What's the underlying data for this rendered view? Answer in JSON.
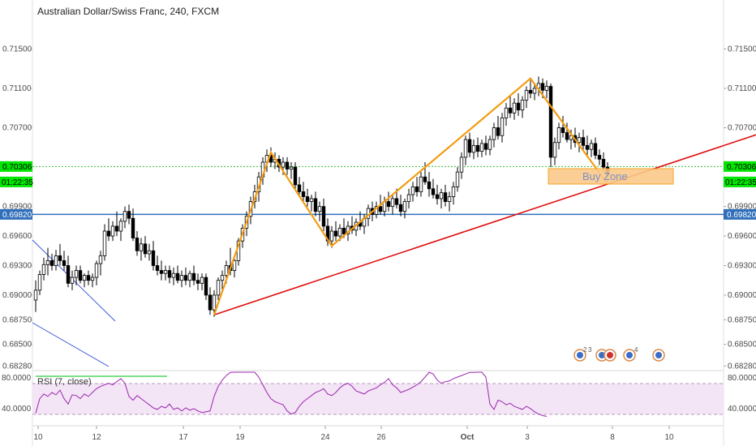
{
  "header": {
    "title": "Australian Dollar/Swiss Franc, 240, FXCM"
  },
  "rsi": {
    "label": "RSI (7, close)",
    "right_ticks": [
      "80.0000",
      "40.0000"
    ],
    "left_ticks": [
      "80.0000",
      "40.0000"
    ]
  },
  "price_tags": {
    "current_left": "0.70306",
    "current_right": "0.70306",
    "countdown_left": "01:22:35",
    "countdown_right": "01:22:35",
    "support_left": "0.69820",
    "support_right": "0.69820"
  },
  "annotation": {
    "buy_zone": "Buy Zone"
  },
  "events": {
    "e1": "2",
    "e2": "3",
    "e3": "4"
  },
  "colors": {
    "up_candle": "#ffffff",
    "down_candle": "#000000",
    "pattern_line": "#f39c12",
    "trend_line": "#e01010",
    "support_line": "#2f6fba",
    "rsi_line": "#9c27b0",
    "rsi_band": "#f3e5f5",
    "green_tag": "#00e600",
    "blue_tag": "#2f6fba"
  },
  "chart_data": {
    "type": "candlestick",
    "y_ticks": [
      "0.71500",
      "0.71100",
      "0.70700",
      "0.69900",
      "0.69600",
      "0.69300",
      "0.69000",
      "0.68750",
      "0.68500",
      "0.68280"
    ],
    "x_ticks": [
      "10",
      "12",
      "17",
      "19",
      "24",
      "26",
      "Oct",
      "3",
      "8",
      "10"
    ],
    "ylim": [
      0.6825,
      0.7175
    ],
    "current_price": 0.70306,
    "support_level": 0.6982,
    "pattern_points": [
      {
        "i": 44,
        "price": 0.688
      },
      {
        "i": 58,
        "price": 0.7045
      },
      {
        "i": 73,
        "price": 0.695
      },
      {
        "i": 122,
        "price": 0.712
      },
      {
        "i": 141,
        "price": 0.7013
      }
    ],
    "trend_line": [
      {
        "i": 44,
        "price": 0.688
      },
      {
        "i": 188,
        "price": 0.7077
      }
    ],
    "candles": [
      {
        "o": 0.6895,
        "h": 0.6915,
        "l": 0.6883,
        "c": 0.6905
      },
      {
        "o": 0.6905,
        "h": 0.6925,
        "l": 0.69,
        "c": 0.6921
      },
      {
        "o": 0.6921,
        "h": 0.6938,
        "l": 0.6915,
        "c": 0.6931
      },
      {
        "o": 0.6931,
        "h": 0.6948,
        "l": 0.692,
        "c": 0.6935
      },
      {
        "o": 0.6935,
        "h": 0.6942,
        "l": 0.6925,
        "c": 0.693
      },
      {
        "o": 0.693,
        "h": 0.6946,
        "l": 0.6925,
        "c": 0.694
      },
      {
        "o": 0.694,
        "h": 0.6952,
        "l": 0.693,
        "c": 0.6935
      },
      {
        "o": 0.6935,
        "h": 0.6945,
        "l": 0.6925,
        "c": 0.693
      },
      {
        "o": 0.693,
        "h": 0.694,
        "l": 0.6908,
        "c": 0.6912
      },
      {
        "o": 0.6912,
        "h": 0.6925,
        "l": 0.6905,
        "c": 0.6918
      },
      {
        "o": 0.6918,
        "h": 0.693,
        "l": 0.691,
        "c": 0.6925
      },
      {
        "o": 0.6925,
        "h": 0.693,
        "l": 0.6912,
        "c": 0.6915
      },
      {
        "o": 0.6915,
        "h": 0.6922,
        "l": 0.6908,
        "c": 0.692
      },
      {
        "o": 0.692,
        "h": 0.6925,
        "l": 0.691,
        "c": 0.6915
      },
      {
        "o": 0.6915,
        "h": 0.6922,
        "l": 0.6908,
        "c": 0.6918
      },
      {
        "o": 0.6918,
        "h": 0.6935,
        "l": 0.691,
        "c": 0.6932
      },
      {
        "o": 0.6932,
        "h": 0.6945,
        "l": 0.692,
        "c": 0.694
      },
      {
        "o": 0.694,
        "h": 0.6972,
        "l": 0.6935,
        "c": 0.6965
      },
      {
        "o": 0.6965,
        "h": 0.6978,
        "l": 0.6955,
        "c": 0.696
      },
      {
        "o": 0.696,
        "h": 0.6975,
        "l": 0.6955,
        "c": 0.697
      },
      {
        "o": 0.697,
        "h": 0.6985,
        "l": 0.696,
        "c": 0.6965
      },
      {
        "o": 0.6965,
        "h": 0.6978,
        "l": 0.6955,
        "c": 0.6975
      },
      {
        "o": 0.6975,
        "h": 0.699,
        "l": 0.6968,
        "c": 0.6985
      },
      {
        "o": 0.6985,
        "h": 0.6992,
        "l": 0.6972,
        "c": 0.6978
      },
      {
        "o": 0.6978,
        "h": 0.6988,
        "l": 0.6955,
        "c": 0.6958
      },
      {
        "o": 0.6958,
        "h": 0.6965,
        "l": 0.694,
        "c": 0.6945
      },
      {
        "o": 0.6945,
        "h": 0.6958,
        "l": 0.6935,
        "c": 0.6952
      },
      {
        "o": 0.6952,
        "h": 0.696,
        "l": 0.6938,
        "c": 0.6942
      },
      {
        "o": 0.6942,
        "h": 0.6952,
        "l": 0.6935,
        "c": 0.6945
      },
      {
        "o": 0.6945,
        "h": 0.6955,
        "l": 0.6925,
        "c": 0.693
      },
      {
        "o": 0.693,
        "h": 0.694,
        "l": 0.692,
        "c": 0.6925
      },
      {
        "o": 0.6925,
        "h": 0.6935,
        "l": 0.6915,
        "c": 0.6922
      },
      {
        "o": 0.6922,
        "h": 0.693,
        "l": 0.6915,
        "c": 0.6925
      },
      {
        "o": 0.6925,
        "h": 0.693,
        "l": 0.6912,
        "c": 0.6918
      },
      {
        "o": 0.6918,
        "h": 0.6928,
        "l": 0.691,
        "c": 0.6922
      },
      {
        "o": 0.6922,
        "h": 0.693,
        "l": 0.6912,
        "c": 0.6915
      },
      {
        "o": 0.6915,
        "h": 0.6925,
        "l": 0.6908,
        "c": 0.692
      },
      {
        "o": 0.692,
        "h": 0.6928,
        "l": 0.691,
        "c": 0.6915
      },
      {
        "o": 0.6915,
        "h": 0.6925,
        "l": 0.6908,
        "c": 0.6922
      },
      {
        "o": 0.6922,
        "h": 0.693,
        "l": 0.691,
        "c": 0.6915
      },
      {
        "o": 0.6915,
        "h": 0.6922,
        "l": 0.6905,
        "c": 0.6912
      },
      {
        "o": 0.6912,
        "h": 0.6922,
        "l": 0.6905,
        "c": 0.6918
      },
      {
        "o": 0.6918,
        "h": 0.6922,
        "l": 0.6895,
        "c": 0.69
      },
      {
        "o": 0.69,
        "h": 0.6908,
        "l": 0.688,
        "c": 0.6885
      },
      {
        "o": 0.6885,
        "h": 0.6905,
        "l": 0.6878,
        "c": 0.69
      },
      {
        "o": 0.69,
        "h": 0.6918,
        "l": 0.6895,
        "c": 0.6915
      },
      {
        "o": 0.6915,
        "h": 0.6925,
        "l": 0.6905,
        "c": 0.692
      },
      {
        "o": 0.692,
        "h": 0.6935,
        "l": 0.6912,
        "c": 0.693
      },
      {
        "o": 0.693,
        "h": 0.6948,
        "l": 0.692,
        "c": 0.6925
      },
      {
        "o": 0.6925,
        "h": 0.694,
        "l": 0.6918,
        "c": 0.6935
      },
      {
        "o": 0.6935,
        "h": 0.6958,
        "l": 0.693,
        "c": 0.6955
      },
      {
        "o": 0.6955,
        "h": 0.6972,
        "l": 0.6948,
        "c": 0.6968
      },
      {
        "o": 0.6968,
        "h": 0.6985,
        "l": 0.696,
        "c": 0.698
      },
      {
        "o": 0.698,
        "h": 0.7,
        "l": 0.6972,
        "c": 0.6995
      },
      {
        "o": 0.6995,
        "h": 0.7012,
        "l": 0.6988,
        "c": 0.7005
      },
      {
        "o": 0.7005,
        "h": 0.7025,
        "l": 0.6995,
        "c": 0.702
      },
      {
        "o": 0.702,
        "h": 0.704,
        "l": 0.7012,
        "c": 0.7035
      },
      {
        "o": 0.7035,
        "h": 0.7048,
        "l": 0.7025,
        "c": 0.7042
      },
      {
        "o": 0.7042,
        "h": 0.705,
        "l": 0.703,
        "c": 0.7035
      },
      {
        "o": 0.7035,
        "h": 0.7045,
        "l": 0.7028,
        "c": 0.7038
      },
      {
        "o": 0.7038,
        "h": 0.7042,
        "l": 0.7025,
        "c": 0.703
      },
      {
        "o": 0.703,
        "h": 0.704,
        "l": 0.7022,
        "c": 0.7035
      },
      {
        "o": 0.7035,
        "h": 0.704,
        "l": 0.7022,
        "c": 0.7028
      },
      {
        "o": 0.7028,
        "h": 0.7035,
        "l": 0.7018,
        "c": 0.703
      },
      {
        "o": 0.703,
        "h": 0.7035,
        "l": 0.7008,
        "c": 0.7012
      },
      {
        "o": 0.7012,
        "h": 0.702,
        "l": 0.7,
        "c": 0.7005
      },
      {
        "o": 0.7005,
        "h": 0.7015,
        "l": 0.6995,
        "c": 0.7
      },
      {
        "o": 0.7,
        "h": 0.7008,
        "l": 0.699,
        "c": 0.6995
      },
      {
        "o": 0.6995,
        "h": 0.7002,
        "l": 0.6985,
        "c": 0.6998
      },
      {
        "o": 0.6998,
        "h": 0.7005,
        "l": 0.698,
        "c": 0.6985
      },
      {
        "o": 0.6985,
        "h": 0.6995,
        "l": 0.6975,
        "c": 0.699
      },
      {
        "o": 0.699,
        "h": 0.6998,
        "l": 0.6965,
        "c": 0.697
      },
      {
        "o": 0.697,
        "h": 0.6978,
        "l": 0.695,
        "c": 0.6955
      },
      {
        "o": 0.6955,
        "h": 0.697,
        "l": 0.6948,
        "c": 0.6965
      },
      {
        "o": 0.6965,
        "h": 0.6975,
        "l": 0.6955,
        "c": 0.696
      },
      {
        "o": 0.696,
        "h": 0.6972,
        "l": 0.6955,
        "c": 0.6968
      },
      {
        "o": 0.6968,
        "h": 0.6978,
        "l": 0.6958,
        "c": 0.6962
      },
      {
        "o": 0.6962,
        "h": 0.6975,
        "l": 0.6955,
        "c": 0.697
      },
      {
        "o": 0.697,
        "h": 0.698,
        "l": 0.6962,
        "c": 0.6966
      },
      {
        "o": 0.6966,
        "h": 0.6978,
        "l": 0.696,
        "c": 0.6974
      },
      {
        "o": 0.6974,
        "h": 0.6985,
        "l": 0.6966,
        "c": 0.697
      },
      {
        "o": 0.697,
        "h": 0.6982,
        "l": 0.6962,
        "c": 0.6978
      },
      {
        "o": 0.6978,
        "h": 0.6992,
        "l": 0.697,
        "c": 0.6988
      },
      {
        "o": 0.6988,
        "h": 0.6995,
        "l": 0.6975,
        "c": 0.6982
      },
      {
        "o": 0.6982,
        "h": 0.6995,
        "l": 0.6978,
        "c": 0.699
      },
      {
        "o": 0.699,
        "h": 0.7002,
        "l": 0.6982,
        "c": 0.6985
      },
      {
        "o": 0.6985,
        "h": 0.7,
        "l": 0.698,
        "c": 0.6995
      },
      {
        "o": 0.6995,
        "h": 0.7005,
        "l": 0.6985,
        "c": 0.699
      },
      {
        "o": 0.699,
        "h": 0.7002,
        "l": 0.6982,
        "c": 0.6998
      },
      {
        "o": 0.6998,
        "h": 0.7008,
        "l": 0.6988,
        "c": 0.6992
      },
      {
        "o": 0.6992,
        "h": 0.7002,
        "l": 0.698,
        "c": 0.6985
      },
      {
        "o": 0.6985,
        "h": 0.6998,
        "l": 0.6978,
        "c": 0.6995
      },
      {
        "o": 0.6995,
        "h": 0.7008,
        "l": 0.6988,
        "c": 0.7002
      },
      {
        "o": 0.7002,
        "h": 0.7015,
        "l": 0.6995,
        "c": 0.701
      },
      {
        "o": 0.701,
        "h": 0.702,
        "l": 0.7,
        "c": 0.7005
      },
      {
        "o": 0.7005,
        "h": 0.7025,
        "l": 0.7,
        "c": 0.702
      },
      {
        "o": 0.702,
        "h": 0.7035,
        "l": 0.7012,
        "c": 0.7015
      },
      {
        "o": 0.7015,
        "h": 0.7025,
        "l": 0.7,
        "c": 0.7008
      },
      {
        "o": 0.7008,
        "h": 0.7018,
        "l": 0.6998,
        "c": 0.7002
      },
      {
        "o": 0.7002,
        "h": 0.7012,
        "l": 0.6992,
        "c": 0.6998
      },
      {
        "o": 0.6998,
        "h": 0.7008,
        "l": 0.6988,
        "c": 0.7004
      },
      {
        "o": 0.7004,
        "h": 0.7012,
        "l": 0.699,
        "c": 0.6995
      },
      {
        "o": 0.6995,
        "h": 0.7005,
        "l": 0.6985,
        "c": 0.7
      },
      {
        "o": 0.7,
        "h": 0.7015,
        "l": 0.6992,
        "c": 0.701
      },
      {
        "o": 0.701,
        "h": 0.703,
        "l": 0.7005,
        "c": 0.7025
      },
      {
        "o": 0.7025,
        "h": 0.7045,
        "l": 0.7018,
        "c": 0.704
      },
      {
        "o": 0.704,
        "h": 0.7062,
        "l": 0.7032,
        "c": 0.7058
      },
      {
        "o": 0.7058,
        "h": 0.7065,
        "l": 0.704,
        "c": 0.7045
      },
      {
        "o": 0.7045,
        "h": 0.7058,
        "l": 0.7038,
        "c": 0.7052
      },
      {
        "o": 0.7052,
        "h": 0.706,
        "l": 0.704,
        "c": 0.7046
      },
      {
        "o": 0.7046,
        "h": 0.7058,
        "l": 0.704,
        "c": 0.7054
      },
      {
        "o": 0.7054,
        "h": 0.7062,
        "l": 0.7042,
        "c": 0.7048
      },
      {
        "o": 0.7048,
        "h": 0.7062,
        "l": 0.7042,
        "c": 0.7058
      },
      {
        "o": 0.7058,
        "h": 0.7075,
        "l": 0.705,
        "c": 0.707
      },
      {
        "o": 0.707,
        "h": 0.7082,
        "l": 0.7058,
        "c": 0.7062
      },
      {
        "o": 0.7062,
        "h": 0.7085,
        "l": 0.7055,
        "c": 0.708
      },
      {
        "o": 0.708,
        "h": 0.7095,
        "l": 0.7072,
        "c": 0.709
      },
      {
        "o": 0.709,
        "h": 0.7102,
        "l": 0.708,
        "c": 0.7085
      },
      {
        "o": 0.7085,
        "h": 0.71,
        "l": 0.7078,
        "c": 0.7095
      },
      {
        "o": 0.7095,
        "h": 0.7105,
        "l": 0.7082,
        "c": 0.7088
      },
      {
        "o": 0.7088,
        "h": 0.7102,
        "l": 0.708,
        "c": 0.7098
      },
      {
        "o": 0.7098,
        "h": 0.7112,
        "l": 0.709,
        "c": 0.7108
      },
      {
        "o": 0.7108,
        "h": 0.7118,
        "l": 0.71,
        "c": 0.7105
      },
      {
        "o": 0.7105,
        "h": 0.7115,
        "l": 0.7098,
        "c": 0.711
      },
      {
        "o": 0.711,
        "h": 0.7122,
        "l": 0.7102,
        "c": 0.7115
      },
      {
        "o": 0.7115,
        "h": 0.712,
        "l": 0.71,
        "c": 0.7108
      },
      {
        "o": 0.7108,
        "h": 0.7118,
        "l": 0.71,
        "c": 0.7112
      },
      {
        "o": 0.7112,
        "h": 0.7115,
        "l": 0.703,
        "c": 0.704
      },
      {
        "o": 0.704,
        "h": 0.706,
        "l": 0.7032,
        "c": 0.7055
      },
      {
        "o": 0.7055,
        "h": 0.7075,
        "l": 0.7048,
        "c": 0.707
      },
      {
        "o": 0.707,
        "h": 0.7082,
        "l": 0.706,
        "c": 0.7065
      },
      {
        "o": 0.7065,
        "h": 0.7075,
        "l": 0.7055,
        "c": 0.7058
      },
      {
        "o": 0.7058,
        "h": 0.7068,
        "l": 0.7048,
        "c": 0.7062
      },
      {
        "o": 0.7062,
        "h": 0.707,
        "l": 0.705,
        "c": 0.7055
      },
      {
        "o": 0.7055,
        "h": 0.7065,
        "l": 0.7045,
        "c": 0.706
      },
      {
        "o": 0.706,
        "h": 0.7068,
        "l": 0.7048,
        "c": 0.7052
      },
      {
        "o": 0.7052,
        "h": 0.7062,
        "l": 0.7042,
        "c": 0.7048
      },
      {
        "o": 0.7048,
        "h": 0.7058,
        "l": 0.704,
        "c": 0.7054
      },
      {
        "o": 0.7054,
        "h": 0.706,
        "l": 0.7038,
        "c": 0.7042
      },
      {
        "o": 0.7042,
        "h": 0.7048,
        "l": 0.7032,
        "c": 0.7038
      },
      {
        "o": 0.7038,
        "h": 0.7045,
        "l": 0.7025,
        "c": 0.703
      },
      {
        "o": 0.703,
        "h": 0.7035,
        "l": 0.7018,
        "c": 0.7022
      }
    ],
    "rsi_values": [
      33,
      52,
      58,
      55,
      60,
      57,
      63,
      52,
      45,
      57,
      56,
      52,
      58,
      55,
      60,
      65,
      68,
      70,
      72,
      70,
      74,
      78,
      72,
      55,
      50,
      56,
      52,
      48,
      44,
      40,
      38,
      42,
      40,
      45,
      38,
      40,
      36,
      40,
      37,
      39,
      36,
      34,
      35,
      36,
      55,
      68,
      76,
      82,
      86,
      88,
      90,
      89,
      88,
      89,
      87,
      80,
      70,
      60,
      52,
      48,
      46,
      44,
      36,
      32,
      34,
      42,
      48,
      52,
      56,
      60,
      62,
      65,
      58,
      56,
      60,
      66,
      70,
      72,
      68,
      62,
      60,
      58,
      62,
      64,
      66,
      70,
      73,
      78,
      70,
      66,
      60,
      62,
      64,
      67,
      70,
      74,
      80,
      88,
      84,
      76,
      72,
      74,
      75,
      78,
      80,
      82,
      84,
      86,
      86,
      87,
      88,
      80,
      45,
      38,
      50,
      48,
      44,
      46,
      42,
      40,
      38,
      42,
      39,
      35,
      32,
      30,
      29
    ]
  }
}
